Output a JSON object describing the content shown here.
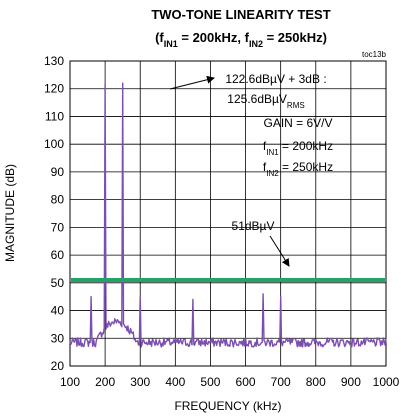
{
  "chart_data": {
    "type": "line",
    "title_line1": "TWO-TONE LINEARITY TEST",
    "title_line2": {
      "open": "(f",
      "sub1": "IN1",
      "mid": " = 200kHz, f",
      "sub2": "IN2",
      "close": " = 250kHz)"
    },
    "figure_code": "toc13b",
    "xlabel": "FREQUENCY (kHz)",
    "ylabel": "MAGNITUDE (dB)",
    "xlim": [
      100,
      1000
    ],
    "ylim": [
      20,
      130
    ],
    "xticks": [
      100,
      200,
      300,
      400,
      500,
      600,
      700,
      800,
      900,
      1000
    ],
    "yticks": [
      20,
      30,
      40,
      50,
      60,
      70,
      80,
      90,
      100,
      110,
      120,
      130
    ],
    "grid": true,
    "annotations": {
      "peak_line1": "122.6dBµV + 3dB :",
      "peak_line2_main": "125.6dBµV",
      "peak_line2_sub": "RMS",
      "gain": "GAIN = 6V/V",
      "fin1_prefix": "f",
      "fin1_sub": "IN1",
      "fin1_suffix": " = 200kHz",
      "fin2_prefix": "f",
      "fin2_sub": "IN2",
      "fin2_suffix": " = 250kHz",
      "threshold": "51dBµV"
    },
    "threshold_line": {
      "y": 51,
      "color": "#22a36a"
    },
    "spectrum": {
      "color": "#7b4fb0",
      "noise_floor": 28.5,
      "peaks": [
        {
          "x": 160,
          "y": 45
        },
        {
          "x": 200,
          "y": 122
        },
        {
          "x": 250,
          "y": 122
        },
        {
          "x": 300,
          "y": 45
        },
        {
          "x": 450,
          "y": 44
        },
        {
          "x": 650,
          "y": 46
        },
        {
          "x": 700,
          "y": 45
        }
      ],
      "bump": {
        "from": 175,
        "to": 290,
        "y": 36
      }
    }
  }
}
